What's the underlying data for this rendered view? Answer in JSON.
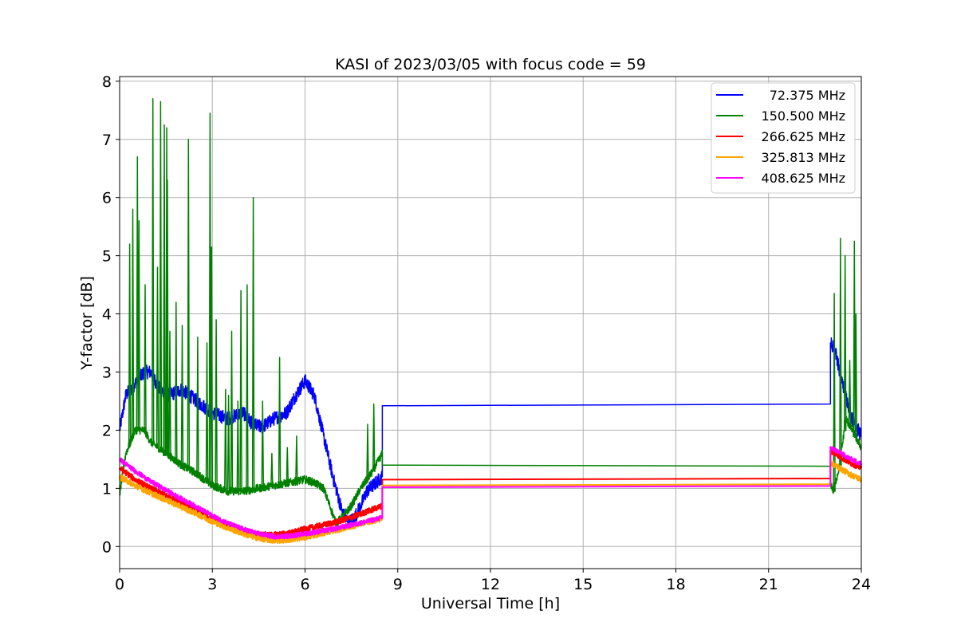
{
  "chart_data": {
    "type": "line",
    "title": "KASI of 2023/03/05 with focus code = 59",
    "xlabel": "Universal Time [h]",
    "ylabel": "Y-factor [dB]",
    "xlim": [
      0,
      24
    ],
    "ylim": [
      -0.38,
      8.08
    ],
    "xticks": [
      0,
      3,
      6,
      9,
      12,
      15,
      18,
      21,
      24
    ],
    "yticks": [
      0,
      1,
      2,
      3,
      4,
      5,
      6,
      7,
      8
    ],
    "grid": true,
    "legend_position": "top-right",
    "series": [
      {
        "name": "72.375 MHz",
        "color": "#0000ff",
        "noise": 0.12,
        "points": [
          [
            0,
            2.0
          ],
          [
            0.2,
            2.6
          ],
          [
            0.5,
            2.8
          ],
          [
            0.8,
            3.0
          ],
          [
            1.0,
            3.0
          ],
          [
            1.3,
            2.7
          ],
          [
            1.6,
            2.6
          ],
          [
            2.0,
            2.7
          ],
          [
            2.5,
            2.5
          ],
          [
            3.0,
            2.3
          ],
          [
            3.5,
            2.2
          ],
          [
            4.0,
            2.3
          ],
          [
            4.3,
            2.1
          ],
          [
            4.6,
            2.05
          ],
          [
            5.0,
            2.2
          ],
          [
            5.4,
            2.3
          ],
          [
            5.7,
            2.6
          ],
          [
            6.0,
            2.85
          ],
          [
            6.3,
            2.6
          ],
          [
            6.6,
            1.9
          ],
          [
            6.9,
            1.2
          ],
          [
            7.2,
            0.6
          ],
          [
            7.4,
            0.4
          ],
          [
            7.6,
            0.5
          ],
          [
            7.8,
            0.7
          ],
          [
            8.0,
            0.95
          ],
          [
            8.3,
            1.1
          ],
          [
            8.5,
            1.2
          ],
          [
            8.5,
            2.42
          ],
          [
            23.0,
            2.45
          ],
          [
            23.0,
            3.5
          ],
          [
            23.15,
            3.4
          ],
          [
            23.3,
            3.0
          ],
          [
            23.5,
            2.6
          ],
          [
            23.7,
            2.2
          ],
          [
            24,
            1.9
          ]
        ]
      },
      {
        "name": "150.500 MHz",
        "color": "#008000",
        "noise": 0.07,
        "points": [
          [
            0,
            0.9
          ],
          [
            0.2,
            1.6
          ],
          [
            0.5,
            2.0
          ],
          [
            0.8,
            2.0
          ],
          [
            1.0,
            1.8
          ],
          [
            1.5,
            1.6
          ],
          [
            2.0,
            1.4
          ],
          [
            2.5,
            1.25
          ],
          [
            3.0,
            1.05
          ],
          [
            3.5,
            0.95
          ],
          [
            4.0,
            0.95
          ],
          [
            4.5,
            1.0
          ],
          [
            5.0,
            1.05
          ],
          [
            5.5,
            1.1
          ],
          [
            6.0,
            1.15
          ],
          [
            6.3,
            1.1
          ],
          [
            6.6,
            1.0
          ],
          [
            6.8,
            0.7
          ],
          [
            7.0,
            0.4
          ],
          [
            7.2,
            0.5
          ],
          [
            7.5,
            0.7
          ],
          [
            7.8,
            1.0
          ],
          [
            8.2,
            1.3
          ],
          [
            8.5,
            1.6
          ],
          [
            8.5,
            1.4
          ],
          [
            23.0,
            1.38
          ],
          [
            23.0,
            1.1
          ],
          [
            23.1,
            0.95
          ],
          [
            23.3,
            1.4
          ],
          [
            23.5,
            2.2
          ],
          [
            23.7,
            2.0
          ],
          [
            24,
            1.7
          ]
        ],
        "spikes": [
          [
            0.3,
            5.2
          ],
          [
            0.4,
            5.8
          ],
          [
            0.55,
            6.7
          ],
          [
            0.6,
            5.6
          ],
          [
            0.8,
            4.5
          ],
          [
            1.05,
            7.7
          ],
          [
            1.2,
            4.8
          ],
          [
            1.3,
            7.65
          ],
          [
            1.42,
            7.25
          ],
          [
            1.5,
            7.2
          ],
          [
            1.52,
            6.3
          ],
          [
            1.6,
            3.7
          ],
          [
            1.8,
            4.2
          ],
          [
            2.0,
            3.8
          ],
          [
            2.2,
            7.0
          ],
          [
            2.5,
            3.6
          ],
          [
            2.8,
            3.5
          ],
          [
            2.9,
            7.45
          ],
          [
            2.95,
            5.15
          ],
          [
            3.1,
            3.9
          ],
          [
            3.4,
            2.7
          ],
          [
            3.5,
            2.6
          ],
          [
            3.6,
            3.7
          ],
          [
            3.8,
            2.5
          ],
          [
            3.9,
            4.4
          ],
          [
            4.1,
            4.5
          ],
          [
            4.3,
            6.0
          ],
          [
            4.6,
            2.5
          ],
          [
            4.9,
            1.6
          ],
          [
            5.15,
            3.25
          ],
          [
            5.4,
            1.7
          ],
          [
            5.7,
            1.9
          ],
          [
            8.0,
            2.1
          ],
          [
            8.2,
            2.45
          ],
          [
            23.1,
            4.35
          ],
          [
            23.3,
            5.3
          ],
          [
            23.45,
            5.0
          ],
          [
            23.6,
            3.2
          ],
          [
            23.75,
            5.25
          ],
          [
            23.8,
            4.0
          ]
        ]
      },
      {
        "name": "266.625 MHz",
        "color": "#ff0000",
        "noise": 0.05,
        "points": [
          [
            0,
            1.35
          ],
          [
            0.5,
            1.15
          ],
          [
            1.0,
            1.0
          ],
          [
            1.5,
            0.88
          ],
          [
            2.0,
            0.75
          ],
          [
            2.5,
            0.62
          ],
          [
            3.0,
            0.48
          ],
          [
            3.5,
            0.35
          ],
          [
            4.0,
            0.25
          ],
          [
            4.5,
            0.2
          ],
          [
            5.0,
            0.2
          ],
          [
            5.5,
            0.23
          ],
          [
            6.0,
            0.3
          ],
          [
            6.5,
            0.36
          ],
          [
            7.0,
            0.42
          ],
          [
            7.5,
            0.5
          ],
          [
            8.0,
            0.6
          ],
          [
            8.5,
            0.7
          ],
          [
            8.5,
            1.15
          ],
          [
            23.0,
            1.17
          ],
          [
            23.0,
            1.65
          ],
          [
            23.3,
            1.55
          ],
          [
            23.6,
            1.45
          ],
          [
            24,
            1.35
          ]
        ]
      },
      {
        "name": "325.813 MHz",
        "color": "#ffa500",
        "noise": 0.05,
        "points": [
          [
            0,
            1.2
          ],
          [
            0.5,
            1.05
          ],
          [
            1.0,
            0.92
          ],
          [
            1.5,
            0.8
          ],
          [
            2.0,
            0.68
          ],
          [
            2.5,
            0.56
          ],
          [
            3.0,
            0.43
          ],
          [
            3.5,
            0.32
          ],
          [
            4.0,
            0.22
          ],
          [
            4.5,
            0.14
          ],
          [
            5.0,
            0.1
          ],
          [
            5.5,
            0.12
          ],
          [
            6.0,
            0.16
          ],
          [
            6.5,
            0.22
          ],
          [
            7.0,
            0.28
          ],
          [
            7.5,
            0.35
          ],
          [
            8.0,
            0.42
          ],
          [
            8.5,
            0.48
          ],
          [
            8.5,
            1.05
          ],
          [
            23.0,
            1.07
          ],
          [
            23.0,
            1.45
          ],
          [
            23.3,
            1.35
          ],
          [
            23.6,
            1.25
          ],
          [
            24,
            1.15
          ]
        ]
      },
      {
        "name": "408.625 MHz",
        "color": "#ff00ff",
        "noise": 0.04,
        "points": [
          [
            0,
            1.5
          ],
          [
            0.5,
            1.3
          ],
          [
            1.0,
            1.12
          ],
          [
            1.5,
            0.97
          ],
          [
            2.0,
            0.82
          ],
          [
            2.5,
            0.68
          ],
          [
            3.0,
            0.53
          ],
          [
            3.5,
            0.4
          ],
          [
            4.0,
            0.3
          ],
          [
            4.5,
            0.22
          ],
          [
            5.0,
            0.17
          ],
          [
            5.5,
            0.18
          ],
          [
            6.0,
            0.22
          ],
          [
            6.5,
            0.26
          ],
          [
            7.0,
            0.31
          ],
          [
            7.5,
            0.37
          ],
          [
            8.0,
            0.43
          ],
          [
            8.5,
            0.5
          ],
          [
            8.5,
            1.02
          ],
          [
            23.0,
            1.04
          ],
          [
            23.0,
            1.7
          ],
          [
            23.3,
            1.62
          ],
          [
            23.6,
            1.52
          ],
          [
            24,
            1.42
          ]
        ]
      }
    ]
  }
}
